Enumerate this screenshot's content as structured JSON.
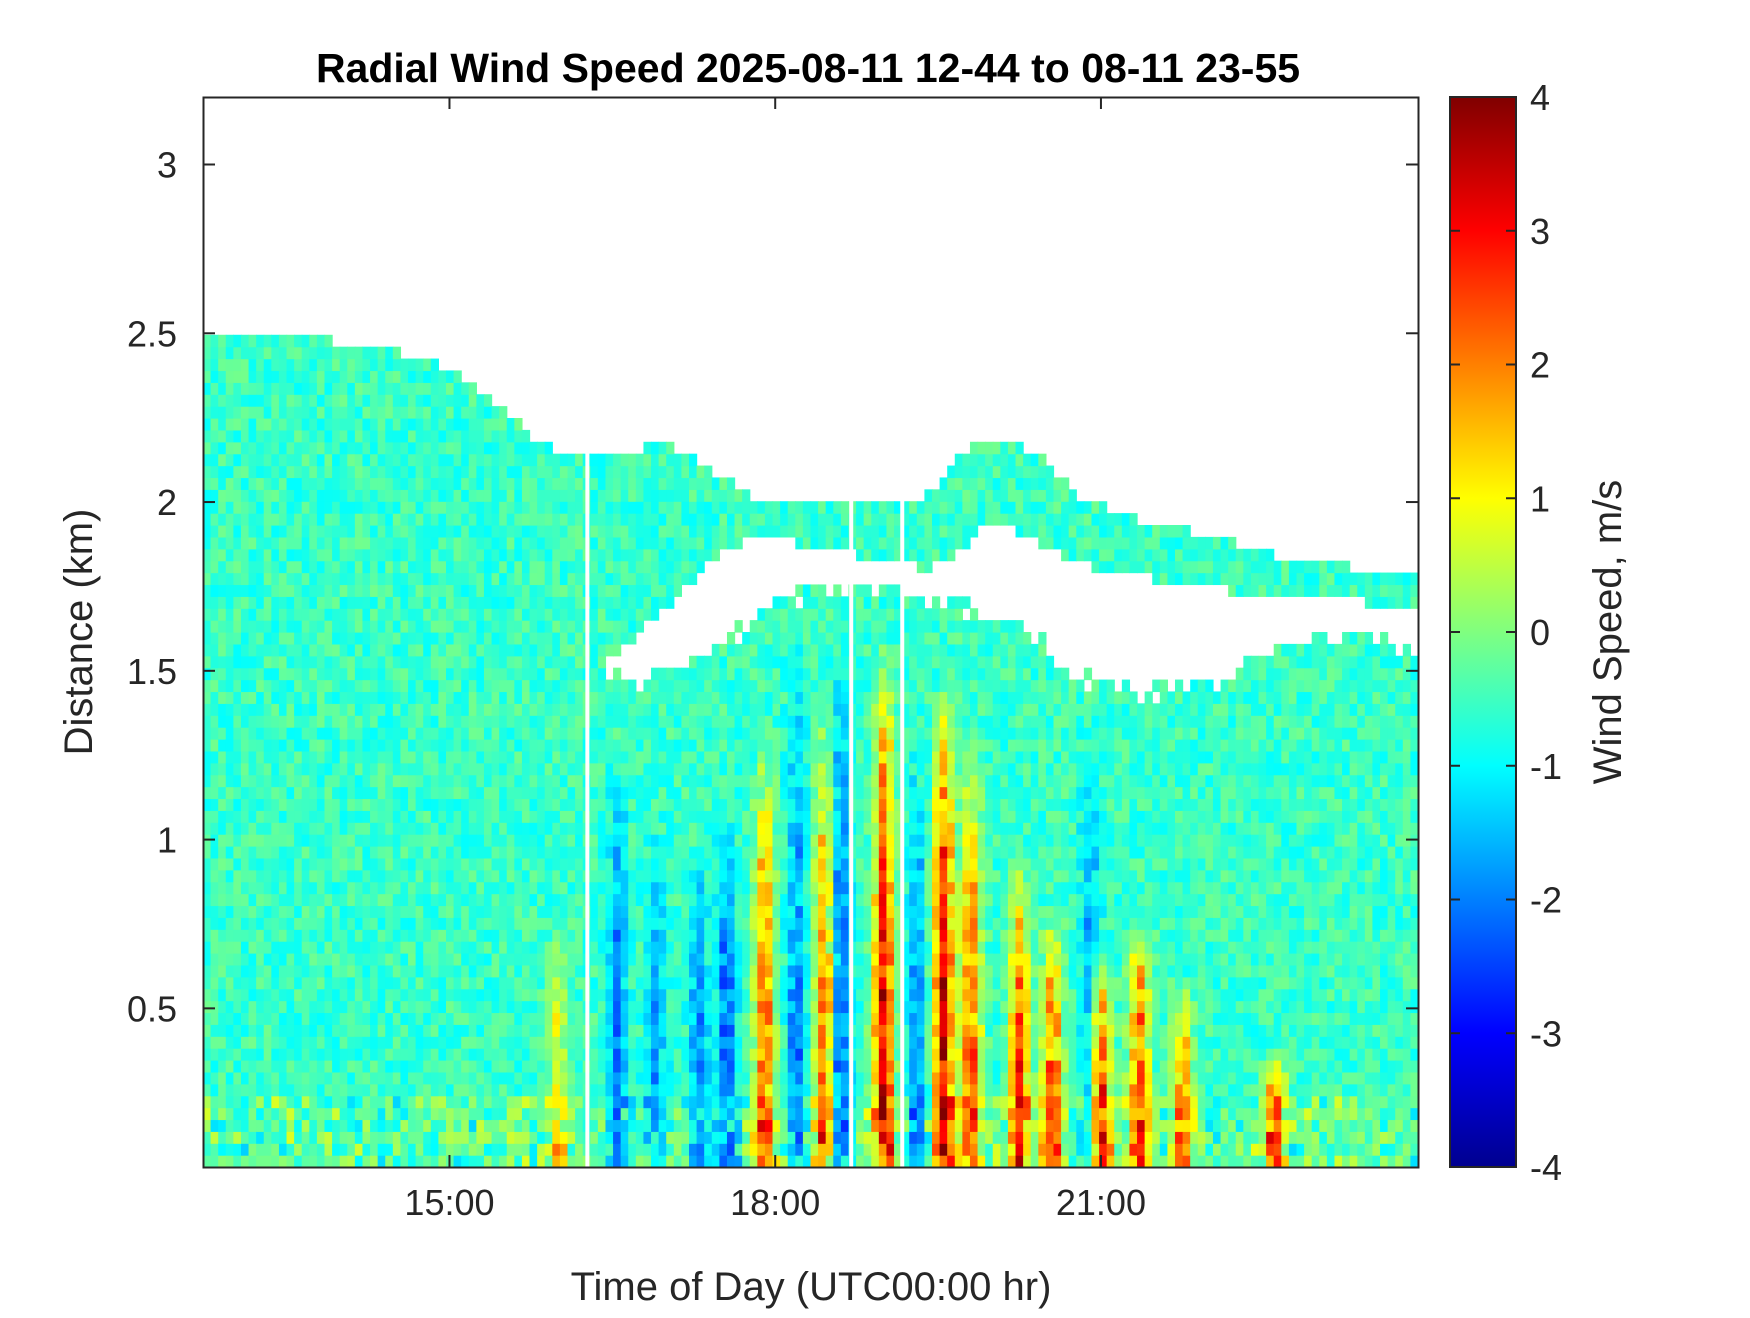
{
  "chart_data": {
    "type": "heatmap",
    "title": "Radial Wind Speed 2025-08-11 12-44 to 08-11 23-55",
    "xlabel": "Time of Day (UTC00:00 hr)",
    "ylabel": "Distance (km)",
    "colorbar_label": "Wind Speed, m/s",
    "colormap": "jet",
    "x_unit": "hours",
    "xlim": [
      12.73,
      23.92
    ],
    "ylim": [
      0.03,
      3.2
    ],
    "clim": [
      -4,
      4
    ],
    "xticks": [
      15,
      18,
      21
    ],
    "xtick_labels": [
      "15:00",
      "18:00",
      "21:00"
    ],
    "yticks": [
      0.5,
      1,
      1.5,
      2,
      2.5,
      3
    ],
    "ytick_labels": [
      "0.5",
      "1",
      "1.5",
      "2",
      "2.5",
      "3"
    ],
    "cticks": [
      -4,
      -3,
      -2,
      -1,
      0,
      1,
      2,
      3,
      4
    ],
    "ctick_labels": [
      "-4",
      "-3",
      "-2",
      "-1",
      "0",
      "1",
      "2",
      "3",
      "4"
    ],
    "gaps_x": [
      16.27,
      18.7,
      19.17
    ],
    "upper_layer": {
      "x": [
        12.73,
        13.5,
        14.5,
        15.0,
        15.5,
        15.8,
        16.2,
        16.5,
        17.0,
        17.4,
        17.8,
        18.2,
        18.6,
        19.0,
        19.4,
        19.7,
        20.0,
        20.4,
        20.8,
        21.3,
        22.0,
        22.5,
        23.0,
        23.5,
        23.92
      ],
      "top_km": [
        2.5,
        2.5,
        2.45,
        2.4,
        2.28,
        2.18,
        2.13,
        2.13,
        2.18,
        2.1,
        2.02,
        2.0,
        2.0,
        2.0,
        2.02,
        2.15,
        2.2,
        2.15,
        2.02,
        1.95,
        1.9,
        1.85,
        1.82,
        1.8,
        1.78
      ],
      "bottom_km": [
        0.03,
        0.03,
        0.03,
        0.03,
        0.03,
        0.03,
        1.5,
        1.55,
        1.68,
        1.82,
        1.9,
        1.88,
        1.85,
        1.83,
        1.8,
        1.85,
        1.95,
        1.88,
        1.82,
        1.78,
        1.75,
        1.72,
        1.72,
        1.7,
        1.7
      ]
    },
    "boundary_layer": {
      "x": [
        12.73,
        13.5,
        14.5,
        15.0,
        15.5,
        15.8,
        16.2,
        16.6,
        17.0,
        17.4,
        17.8,
        18.3,
        18.8,
        19.2,
        19.6,
        20.0,
        20.4,
        20.8,
        21.3,
        22.0,
        22.5,
        23.0,
        23.5,
        23.92
      ],
      "top_km": [
        2.5,
        2.5,
        2.45,
        2.35,
        2.1,
        1.9,
        1.6,
        1.48,
        1.5,
        1.55,
        1.68,
        1.75,
        1.78,
        1.75,
        1.72,
        1.68,
        1.62,
        1.5,
        1.45,
        1.48,
        1.55,
        1.6,
        1.62,
        1.55
      ]
    },
    "convective_cells": [
      {
        "x": 16.0,
        "top_km": 0.8,
        "mean_ms": 1.0
      },
      {
        "x": 16.55,
        "top_km": 1.3,
        "mean_ms": -2.2
      },
      {
        "x": 16.9,
        "top_km": 1.1,
        "mean_ms": -1.8
      },
      {
        "x": 17.3,
        "top_km": 1.0,
        "mean_ms": -2.0
      },
      {
        "x": 17.55,
        "top_km": 1.1,
        "mean_ms": -2.4
      },
      {
        "x": 17.9,
        "top_km": 1.3,
        "mean_ms": 2.5
      },
      {
        "x": 18.2,
        "top_km": 1.6,
        "mean_ms": -2.0
      },
      {
        "x": 18.45,
        "top_km": 1.4,
        "mean_ms": 2.2
      },
      {
        "x": 18.6,
        "top_km": 1.6,
        "mean_ms": -2.3
      },
      {
        "x": 19.0,
        "top_km": 1.6,
        "mean_ms": 3.4
      },
      {
        "x": 19.3,
        "top_km": 1.3,
        "mean_ms": -2.0
      },
      {
        "x": 19.55,
        "top_km": 1.5,
        "mean_ms": 3.6
      },
      {
        "x": 19.8,
        "top_km": 1.3,
        "mean_ms": 2.8
      },
      {
        "x": 20.25,
        "top_km": 1.0,
        "mean_ms": 2.8
      },
      {
        "x": 20.55,
        "top_km": 0.8,
        "mean_ms": 2.6
      },
      {
        "x": 20.9,
        "top_km": 1.4,
        "mean_ms": -1.8
      },
      {
        "x": 21.0,
        "top_km": 0.7,
        "mean_ms": 3.2
      },
      {
        "x": 21.35,
        "top_km": 0.8,
        "mean_ms": 2.8
      },
      {
        "x": 21.75,
        "top_km": 0.6,
        "mean_ms": 2.4
      },
      {
        "x": 22.6,
        "top_km": 0.4,
        "mean_ms": 2.8
      }
    ],
    "grid": false,
    "legend": "colorbar-right"
  }
}
